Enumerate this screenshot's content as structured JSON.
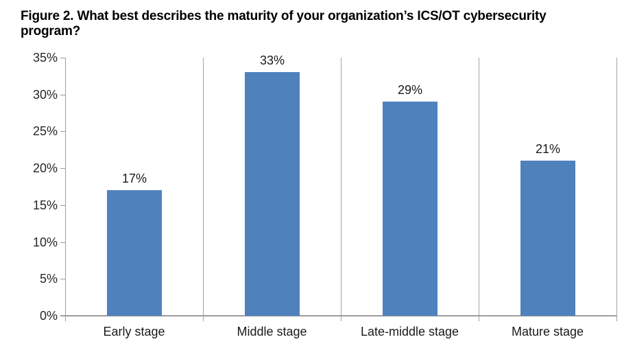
{
  "figure": {
    "title_lines": [
      "Figure 2. What best describes the maturity of your organization’s ICS/OT cybersecurity",
      "program?"
    ]
  },
  "chart_data": {
    "type": "bar",
    "title": "Figure 2. What best describes the maturity of your organization’s ICS/OT cybersecurity program?",
    "categories": [
      "Early stage",
      "Middle stage",
      "Late-middle stage",
      "Mature stage"
    ],
    "values": [
      17,
      33,
      29,
      21
    ],
    "data_labels": [
      "17%",
      "33%",
      "29%",
      "21%"
    ],
    "xlabel": "",
    "ylabel": "",
    "ylim": [
      0,
      35
    ],
    "ytick_step": 5,
    "ytick_labels": [
      "35%",
      "30%",
      "25%",
      "20%",
      "15%",
      "10%",
      "5%",
      "0%"
    ],
    "grid": "off",
    "category_dividers": true,
    "legend_position": "none",
    "colors": {
      "bar_fill": "#4F81BD",
      "axis_line": "#9c9c9c",
      "divider_line": "#a3a3a3",
      "title_text": "#000000",
      "tick_text": "#262626",
      "label_text": "#1a1a1a"
    }
  }
}
